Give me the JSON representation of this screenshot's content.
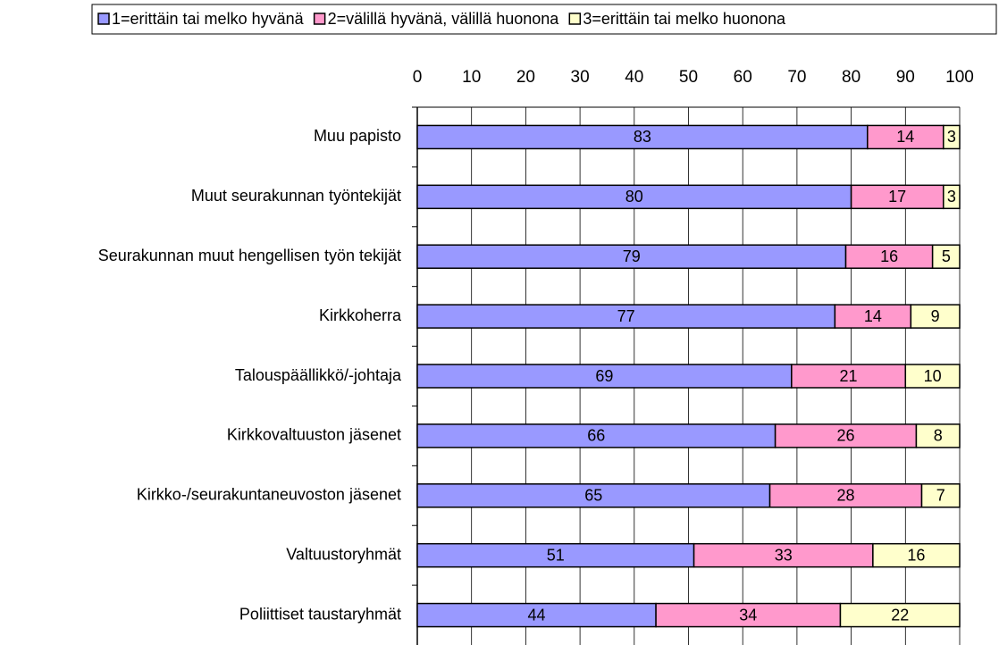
{
  "chart_data": {
    "type": "stacked_bar_horizontal",
    "categories": [
      "Muu papisto",
      "Muut seurakunnan työntekijät",
      "Seurakunnan muut hengellisen työn tekijät",
      "Kirkkoherra",
      "Talouspäällikkö/-johtaja",
      "Kirkkovaltuuston jäsenet",
      "Kirkko-/seurakuntaneuvoston jäsenet",
      "Valtuustoryhmät",
      "Poliittiset taustaryhmät"
    ],
    "series": [
      {
        "name": "1=erittäin tai melko hyvänä",
        "color": "#9999ff",
        "values": [
          83,
          80,
          79,
          77,
          69,
          66,
          65,
          51,
          44
        ]
      },
      {
        "name": "2=välillä hyvänä, välillä huonona",
        "color": "#ff99cc",
        "values": [
          14,
          17,
          16,
          14,
          21,
          26,
          28,
          33,
          34
        ]
      },
      {
        "name": "3=erittäin tai melko huonona",
        "color": "#ffffcc",
        "values": [
          3,
          3,
          5,
          9,
          10,
          8,
          7,
          16,
          22
        ]
      }
    ],
    "xlim": [
      0,
      100
    ],
    "xticks": [
      0,
      10,
      20,
      30,
      40,
      50,
      60,
      70,
      80,
      90,
      100
    ],
    "grid": true,
    "legend": "top"
  }
}
